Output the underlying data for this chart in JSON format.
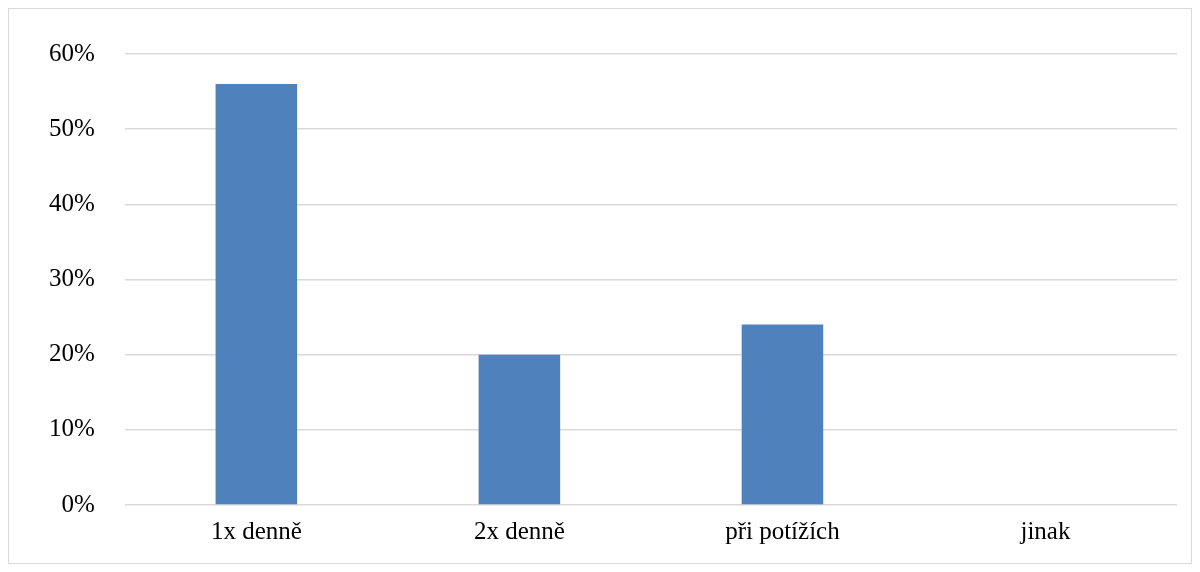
{
  "chart_data": {
    "type": "bar",
    "categories": [
      "1x denně",
      "2x denně",
      "při potížích",
      "jinak"
    ],
    "values": [
      56,
      20,
      24,
      0
    ],
    "color": "#4f81bd",
    "ylim": [
      0,
      60
    ],
    "yticks": [
      {
        "value": 0,
        "label": "0%"
      },
      {
        "value": 10,
        "label": "10%"
      },
      {
        "value": 20,
        "label": "20%"
      },
      {
        "value": 30,
        "label": "30%"
      },
      {
        "value": 40,
        "label": "40%"
      },
      {
        "value": 50,
        "label": "50%"
      },
      {
        "value": 60,
        "label": "60%"
      }
    ],
    "grid": "y",
    "legend": false
  }
}
